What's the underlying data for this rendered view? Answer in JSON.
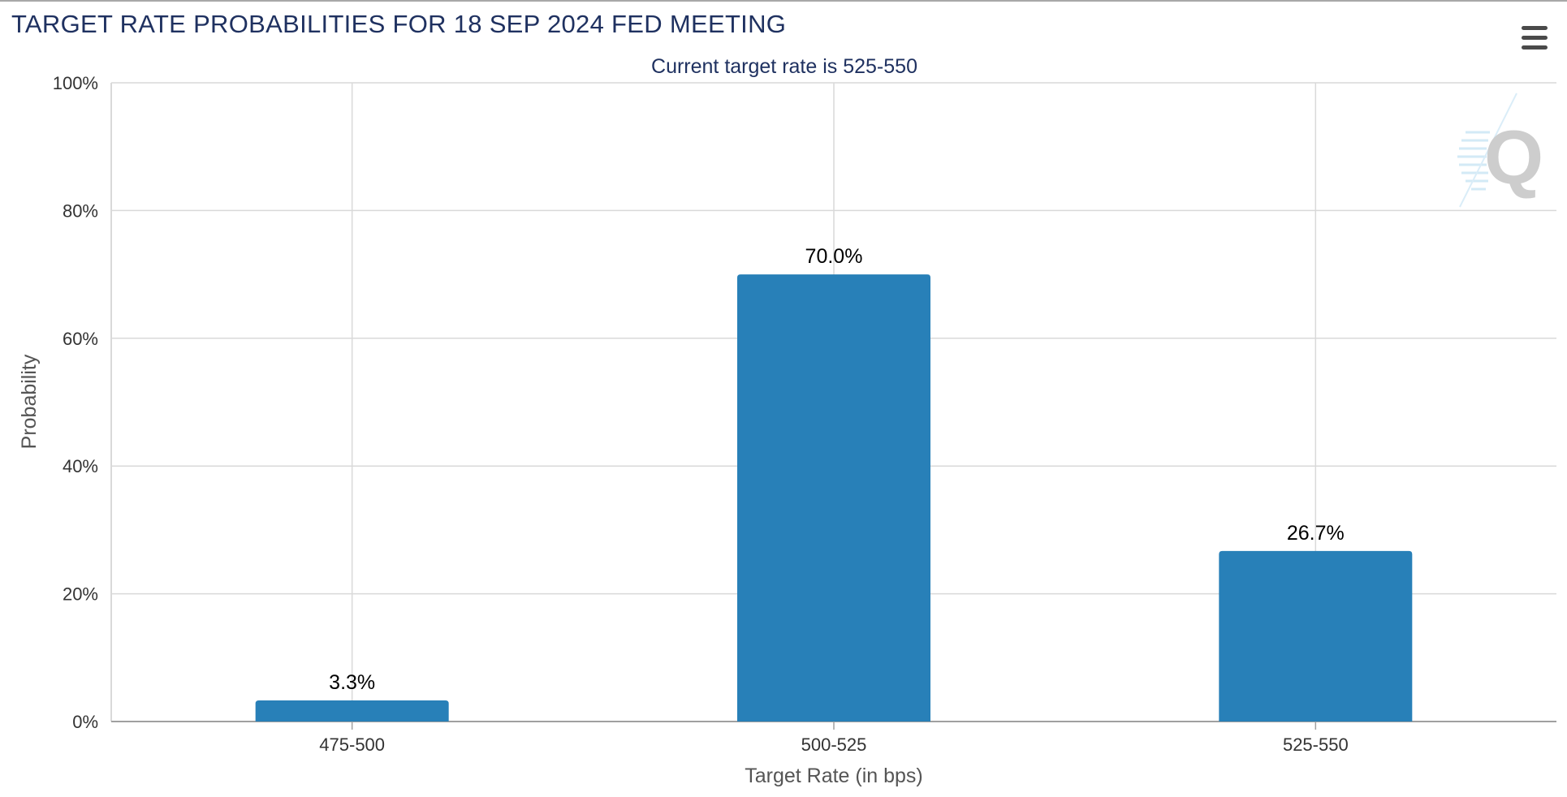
{
  "title": "TARGET RATE PROBABILITIES FOR 18 SEP 2024 FED MEETING",
  "menu": {
    "icon": "hamburger-menu-icon"
  },
  "watermark": {
    "icon": "quikstrike-q-logo-icon",
    "letter": "Q"
  },
  "colors": {
    "bar": "#2880b8",
    "title": "#1f3160",
    "subtitle": "#1f3160",
    "axis_text": "#333333",
    "axis_title": "#555555",
    "gridline": "#d9d9d9",
    "axis_line": "#a0a0a0"
  },
  "chart_data": {
    "type": "bar",
    "title": "TARGET RATE PROBABILITIES FOR 18 SEP 2024 FED MEETING",
    "subtitle": "Current target rate is 525-550",
    "categories": [
      "475-500",
      "500-525",
      "525-550"
    ],
    "values": [
      3.3,
      70.0,
      26.7
    ],
    "value_labels": [
      "3.3%",
      "70.0%",
      "26.7%"
    ],
    "xlabel": "Target Rate (in bps)",
    "ylabel": "Probability",
    "ylim": [
      0,
      100
    ],
    "yticks": [
      0,
      20,
      40,
      60,
      80,
      100
    ],
    "ytick_labels": [
      "0%",
      "20%",
      "40%",
      "60%",
      "80%",
      "100%"
    ],
    "grid": true,
    "legend": "none"
  }
}
